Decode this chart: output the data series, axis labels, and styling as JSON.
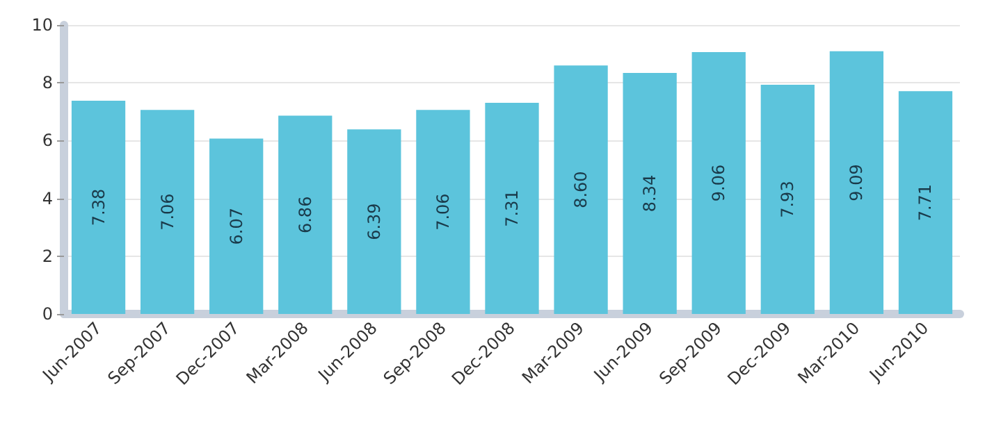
{
  "chart_data": {
    "type": "bar",
    "categories": [
      "Jun-2007",
      "Sep-2007",
      "Dec-2007",
      "Mar-2008",
      "Jun-2008",
      "Sep-2008",
      "Dec-2008",
      "Mar-2009",
      "Jun-2009",
      "Sep-2009",
      "Dec-2009",
      "Mar-2010",
      "Jun-2010"
    ],
    "values": [
      7.38,
      7.06,
      6.07,
      6.86,
      6.39,
      7.06,
      7.31,
      8.6,
      8.34,
      9.06,
      7.93,
      9.09,
      7.71
    ],
    "color": "#5cc4dc",
    "ylim": [
      0,
      10
    ],
    "yticks": [
      0,
      2,
      4,
      6,
      8,
      10
    ],
    "grid": "y",
    "value_labels": [
      "7.38",
      "7.06",
      "6.07",
      "6.86",
      "6.39",
      "7.06",
      "7.31",
      "8.60",
      "8.34",
      "9.06",
      "7.93",
      "9.09",
      "7.71"
    ]
  }
}
